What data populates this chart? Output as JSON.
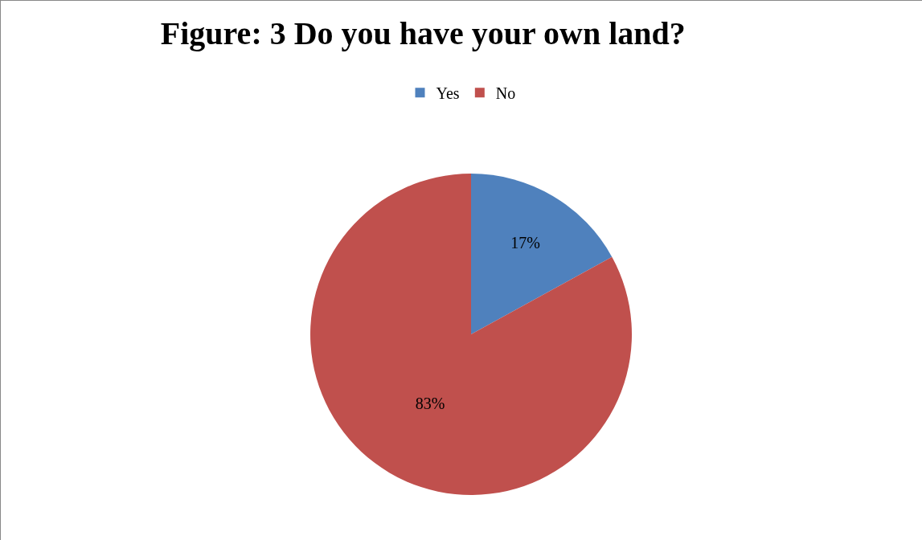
{
  "chart_data": {
    "type": "pie",
    "title": "Figure: 3 Do you have your own land?",
    "categories": [
      "Yes",
      "No"
    ],
    "values": [
      17,
      83
    ],
    "colors": [
      "#4f81bd",
      "#c0504d"
    ],
    "value_labels": [
      "17%",
      "83%"
    ],
    "legend": "top"
  }
}
